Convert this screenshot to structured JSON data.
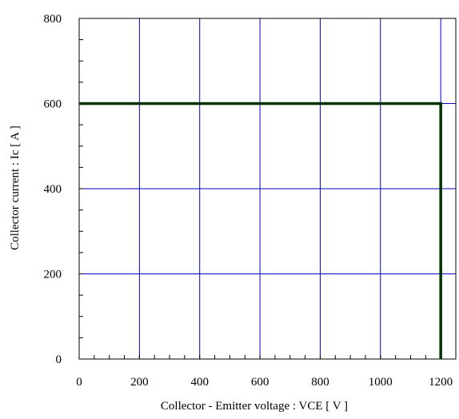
{
  "chart_data": {
    "type": "line",
    "xlabel": "Collector - Emitter voltage  :  VCE  [ V ]",
    "ylabel": "Collector current  :  Ic  [ A ]",
    "xlim": [
      0,
      1250
    ],
    "ylim": [
      0,
      800
    ],
    "x_ticks": [
      0,
      200,
      400,
      600,
      800,
      1000,
      1200
    ],
    "y_ticks": [
      0,
      200,
      400,
      600,
      800
    ],
    "x_tick_labels": [
      "0",
      "200",
      "400",
      "600",
      "800",
      "1000",
      "1200"
    ],
    "y_tick_labels": [
      "0",
      "200",
      "400",
      "600",
      "800"
    ],
    "grid": true,
    "grid_color": "#0000cc",
    "series": [
      {
        "color": "#003300",
        "x": [
          0,
          1200,
          1200
        ],
        "y": [
          600,
          600,
          0
        ]
      }
    ]
  }
}
